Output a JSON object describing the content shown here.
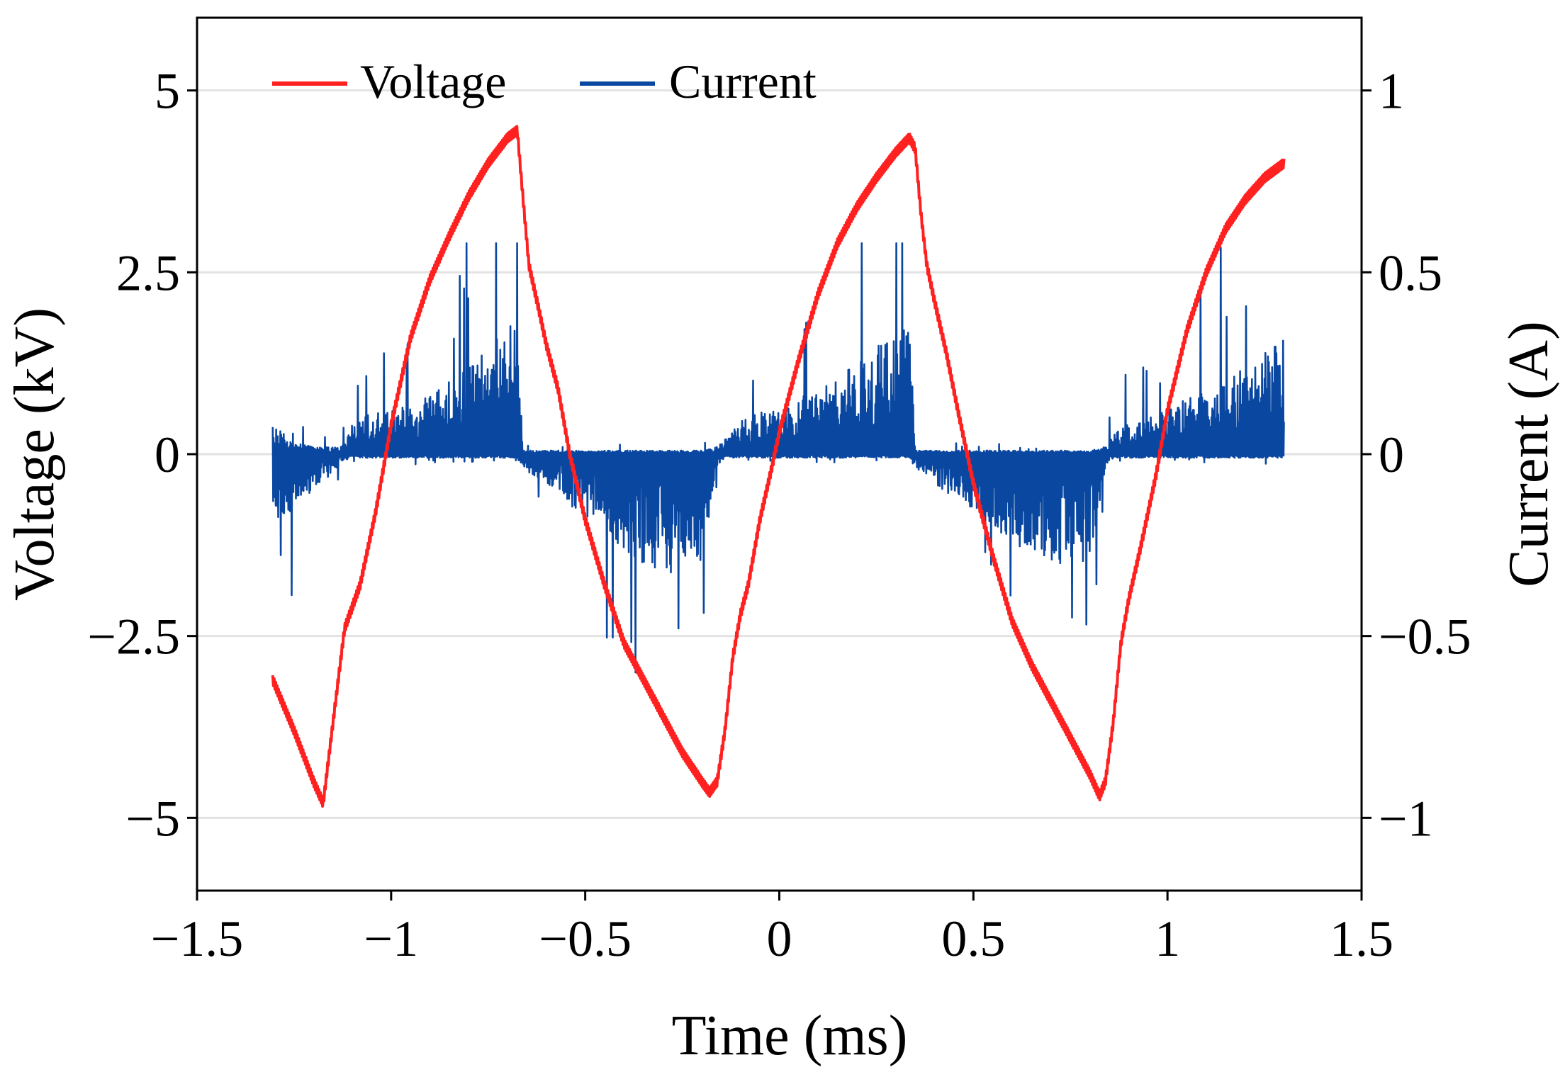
{
  "chart_data": {
    "type": "line",
    "title": "",
    "xlabel": "Time (ms)",
    "ylabel": "Voltage (kV)",
    "y2label": "Current (A)",
    "xlim": [
      -1.5,
      1.5
    ],
    "ylim": [
      -6,
      6
    ],
    "y2lim": [
      -1.2,
      1.2
    ],
    "grid": "horizontal",
    "legend_position": "top-left",
    "xticks": [
      {
        "value": -1.5,
        "label": "−1.5"
      },
      {
        "value": -1,
        "label": "−1"
      },
      {
        "value": -0.5,
        "label": "−0.5"
      },
      {
        "value": 0,
        "label": "0"
      },
      {
        "value": 0.5,
        "label": "0.5"
      },
      {
        "value": 1,
        "label": "1"
      },
      {
        "value": 1.5,
        "label": "1.5"
      }
    ],
    "yticks": [
      {
        "value": 5,
        "label": "5"
      },
      {
        "value": 2.5,
        "label": "2.5"
      },
      {
        "value": 0,
        "label": "0"
      },
      {
        "value": -2.5,
        "label": "−2.5"
      },
      {
        "value": -5,
        "label": "−5"
      }
    ],
    "y2ticks": [
      {
        "value": 1,
        "label": "1"
      },
      {
        "value": 0.5,
        "label": "0.5"
      },
      {
        "value": 0,
        "label": "0"
      },
      {
        "value": -0.5,
        "label": "−0.5"
      },
      {
        "value": -1,
        "label": "−1"
      }
    ],
    "series": [
      {
        "name": "Voltage",
        "axis": "left",
        "color": "#ff2020",
        "x": [
          -1.305,
          -1.25,
          -1.2,
          -1.175,
          -1.15,
          -1.12,
          -1.08,
          -1.04,
          -1.0,
          -0.95,
          -0.9,
          -0.85,
          -0.8,
          -0.75,
          -0.7,
          -0.675,
          -0.66,
          -0.645,
          -0.62,
          -0.6,
          -0.57,
          -0.54,
          -0.5,
          -0.45,
          -0.4,
          -0.35,
          -0.3,
          -0.25,
          -0.2,
          -0.18,
          -0.16,
          -0.14,
          -0.12,
          -0.1,
          -0.08,
          -0.05,
          -0.02,
          0.0,
          0.05,
          0.1,
          0.15,
          0.2,
          0.25,
          0.3,
          0.335,
          0.35,
          0.365,
          0.38,
          0.4,
          0.43,
          0.46,
          0.5,
          0.55,
          0.6,
          0.65,
          0.7,
          0.75,
          0.8,
          0.825,
          0.84,
          0.86,
          0.88,
          0.9,
          0.93,
          0.97,
          1.0,
          1.05,
          1.1,
          1.15,
          1.2,
          1.25,
          1.3
        ],
        "values": [
          -3.1,
          -3.8,
          -4.5,
          -4.8,
          -3.7,
          -2.4,
          -1.8,
          -0.8,
          0.4,
          1.6,
          2.4,
          3.0,
          3.55,
          4.0,
          4.35,
          4.45,
          3.5,
          2.6,
          2.0,
          1.5,
          0.9,
          0.0,
          -0.9,
          -1.8,
          -2.6,
          -3.1,
          -3.6,
          -4.1,
          -4.5,
          -4.65,
          -4.5,
          -3.8,
          -2.8,
          -2.2,
          -1.8,
          -0.9,
          -0.2,
          0.3,
          1.3,
          2.2,
          2.9,
          3.4,
          3.8,
          4.15,
          4.35,
          4.2,
          3.3,
          2.6,
          2.1,
          1.4,
          0.6,
          -0.4,
          -1.4,
          -2.3,
          -2.9,
          -3.4,
          -3.9,
          -4.4,
          -4.7,
          -4.5,
          -3.7,
          -2.6,
          -2.0,
          -1.3,
          -0.3,
          0.6,
          1.7,
          2.5,
          3.1,
          3.5,
          3.8,
          4.0
        ]
      },
      {
        "name": "Current",
        "axis": "right",
        "color": "#0a47a1",
        "noise_model": "burst-activity envelope; spikes generated deterministically",
        "x": [
          -1.305,
          -1.28,
          -1.26,
          -1.24,
          -1.2,
          -1.15,
          -1.13,
          -1.1,
          -1.05,
          -1.0,
          -0.95,
          -0.9,
          -0.85,
          -0.8,
          -0.75,
          -0.7,
          -0.675,
          -0.66,
          -0.6,
          -0.55,
          -0.5,
          -0.45,
          -0.4,
          -0.35,
          -0.3,
          -0.25,
          -0.2,
          -0.16,
          -0.14,
          -0.1,
          -0.05,
          0.0,
          0.05,
          0.1,
          0.15,
          0.2,
          0.25,
          0.3,
          0.335,
          0.35,
          0.4,
          0.45,
          0.5,
          0.55,
          0.6,
          0.65,
          0.7,
          0.75,
          0.8,
          0.84,
          0.86,
          0.9,
          0.95,
          1.0,
          1.05,
          1.1,
          1.15,
          1.2,
          1.25,
          1.3
        ],
        "upper": [
          0.08,
          0.06,
          0.04,
          0.03,
          0.02,
          0.02,
          0.02,
          0.08,
          0.12,
          0.13,
          0.14,
          0.17,
          0.2,
          0.24,
          0.3,
          0.36,
          0.4,
          0.01,
          0.01,
          0.01,
          0.01,
          0.01,
          0.01,
          0.01,
          0.01,
          0.01,
          0.01,
          0.02,
          0.04,
          0.09,
          0.12,
          0.14,
          0.16,
          0.18,
          0.21,
          0.25,
          0.3,
          0.34,
          0.38,
          0.01,
          0.01,
          0.01,
          0.01,
          0.01,
          0.01,
          0.01,
          0.01,
          0.01,
          0.01,
          0.02,
          0.06,
          0.09,
          0.11,
          0.13,
          0.15,
          0.18,
          0.2,
          0.24,
          0.28,
          0.32
        ],
        "lower": [
          -0.2,
          -0.18,
          -0.16,
          -0.13,
          -0.1,
          -0.05,
          -0.02,
          -0.01,
          -0.01,
          -0.01,
          -0.01,
          -0.01,
          -0.01,
          -0.01,
          -0.01,
          -0.01,
          -0.01,
          -0.04,
          -0.08,
          -0.13,
          -0.18,
          -0.22,
          -0.26,
          -0.3,
          -0.32,
          -0.34,
          -0.3,
          -0.03,
          -0.01,
          -0.01,
          -0.01,
          -0.01,
          -0.01,
          -0.01,
          -0.01,
          -0.01,
          -0.01,
          -0.01,
          -0.01,
          -0.04,
          -0.08,
          -0.12,
          -0.16,
          -0.2,
          -0.24,
          -0.28,
          -0.3,
          -0.32,
          -0.3,
          -0.04,
          -0.01,
          -0.01,
          -0.01,
          -0.01,
          -0.01,
          -0.01,
          -0.01,
          -0.01,
          -0.01,
          -0.01
        ]
      }
    ]
  }
}
